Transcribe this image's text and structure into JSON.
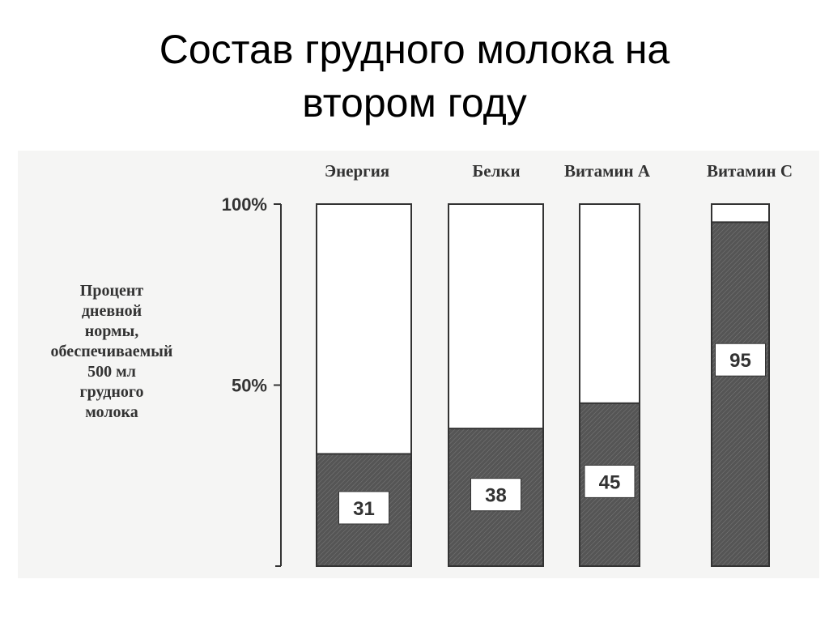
{
  "slide": {
    "title_line1": "Состав грудного молока на",
    "title_line2": "втором году"
  },
  "chart_data": {
    "type": "bar",
    "stacked": true,
    "categories": [
      "Энергия",
      "Белки",
      "Витамин А",
      "Витамин С"
    ],
    "values": [
      31,
      38,
      45,
      95
    ],
    "value_labels": [
      "31",
      "38",
      "45",
      "95"
    ],
    "ylabel_lines": [
      "Процент",
      "дневной",
      "нормы,",
      "обеспечиваемый",
      "500 мл",
      "грудного",
      "молока"
    ],
    "ylim": [
      0,
      100
    ],
    "yticks": [
      {
        "value": 50,
        "label": "50%"
      },
      {
        "value": 100,
        "label": "100%"
      }
    ],
    "grid": false,
    "legend": "none",
    "colors": {
      "filled": "#555555",
      "empty": "#ffffff",
      "outline": "#333333",
      "text": "#333333"
    }
  }
}
